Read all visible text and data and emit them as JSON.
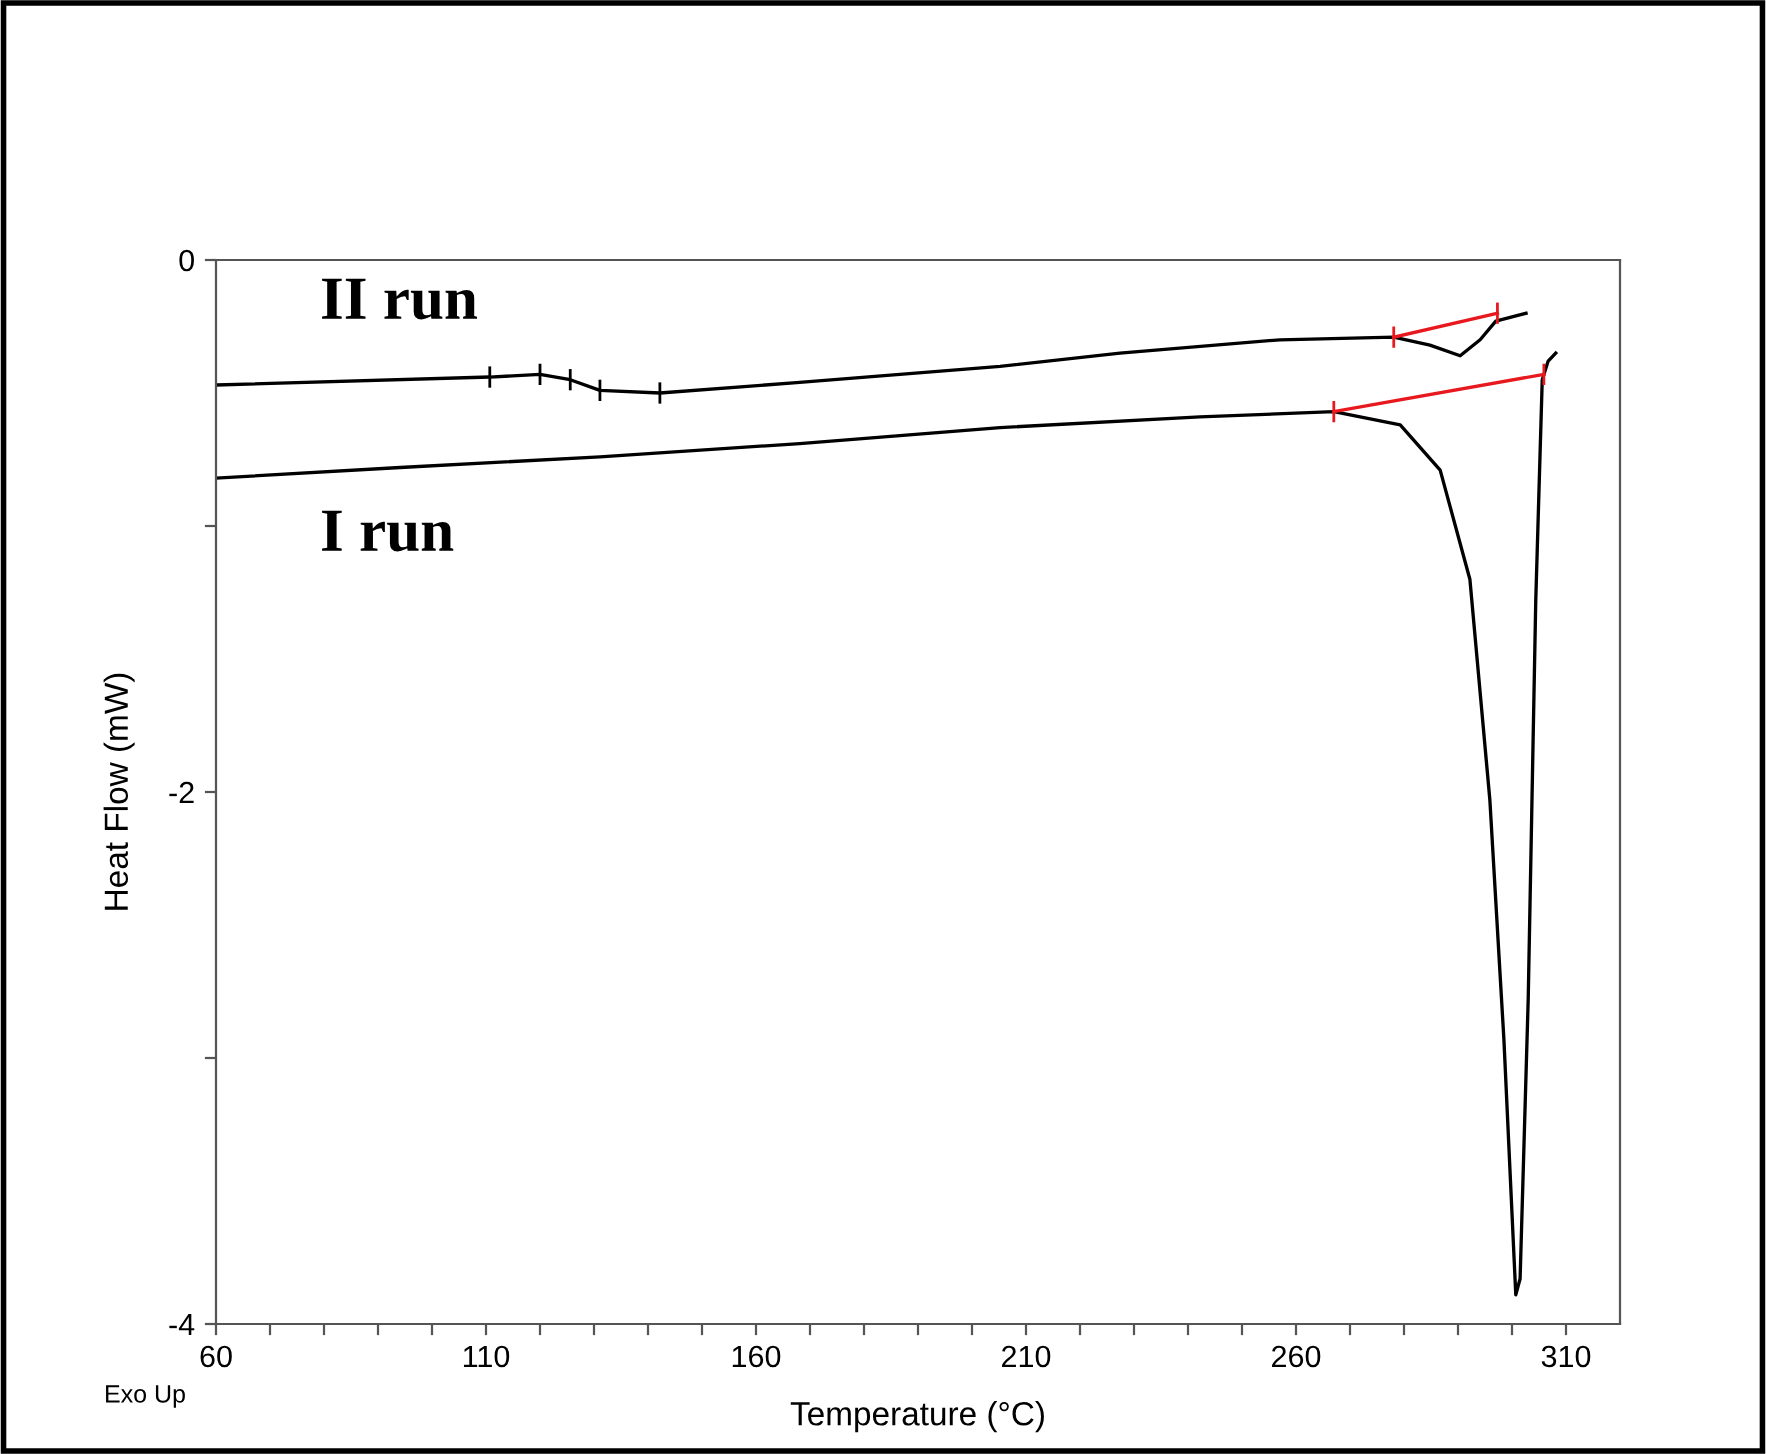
{
  "chart_data": {
    "type": "line",
    "xlabel": "Temperature (°C)",
    "ylabel": "Heat Flow (mW)",
    "xlim": [
      60,
      320
    ],
    "ylim": [
      -4,
      0
    ],
    "xticks": [
      60,
      {
        "value": 70,
        "label": null
      },
      {
        "value": 80,
        "label": null
      },
      {
        "value": 90,
        "label": null
      },
      {
        "value": 100,
        "label": null
      },
      110,
      {
        "value": 120,
        "label": null
      },
      {
        "value": 130,
        "label": null
      },
      {
        "value": 140,
        "label": null
      },
      {
        "value": 150,
        "label": null
      },
      160,
      {
        "value": 170,
        "label": null
      },
      {
        "value": 180,
        "label": null
      },
      {
        "value": 190,
        "label": null
      },
      {
        "value": 200,
        "label": null
      },
      210,
      {
        "value": 220,
        "label": null
      },
      {
        "value": 230,
        "label": null
      },
      {
        "value": 240,
        "label": null
      },
      {
        "value": 250,
        "label": null
      },
      260,
      {
        "value": 270,
        "label": null
      },
      {
        "value": 280,
        "label": null
      },
      {
        "value": 290,
        "label": null
      },
      {
        "value": 300,
        "label": null
      },
      310
    ],
    "yticks": [
      0,
      {
        "value": -1,
        "label": null
      },
      -2,
      {
        "value": -3,
        "label": null
      },
      -4
    ],
    "grid": false,
    "legend": false,
    "marker": "none",
    "series": [
      {
        "color": "#000000",
        "x": [
          60,
          110.7,
          120,
          125.6,
          131.1,
          142.2,
          168.1,
          205.2,
          227.4,
          257,
          278.1,
          284.8,
          290.4,
          294.1,
          297,
          302.6
        ],
        "values": [
          -0.47,
          -0.44,
          -0.43,
          -0.45,
          -0.49,
          -0.5,
          -0.46,
          -0.4,
          -0.35,
          -0.3,
          -0.29,
          -0.32,
          -0.36,
          -0.3,
          -0.23,
          -0.2
        ],
        "errors": [
          null,
          0.04,
          0.04,
          0.04,
          0.04,
          0.04,
          null,
          null,
          null,
          null,
          null,
          null,
          null,
          null,
          null,
          null
        ]
      },
      {
        "color": "#000000",
        "x": [
          60,
          94.1,
          131.1,
          168.1,
          205.2,
          242.2,
          267,
          279.3,
          286.7,
          292.2,
          295.9,
          298.5,
          300.7,
          301.5,
          303,
          304.4,
          305.6,
          306.7,
          308.1
        ],
        "values": [
          -0.82,
          -0.78,
          -0.74,
          -0.69,
          -0.63,
          -0.59,
          -0.57,
          -0.62,
          -0.79,
          -1.2,
          -2.03,
          -2.93,
          -3.89,
          -3.83,
          -2.78,
          -1.28,
          -0.45,
          -0.38,
          -0.35
        ]
      },
      {
        "color": "#e8191e",
        "x": [
          278.1,
          297.3
        ],
        "values": [
          -0.29,
          -0.2
        ],
        "errors": [
          0.04,
          0.04
        ]
      },
      {
        "color": "#e8191e",
        "x": [
          267,
          305.9
        ],
        "values": [
          -0.57,
          -0.43
        ],
        "errors": [
          0.04,
          0.04
        ]
      }
    ],
    "annotations": [
      "II run",
      "I run",
      "Exo Up"
    ]
  }
}
